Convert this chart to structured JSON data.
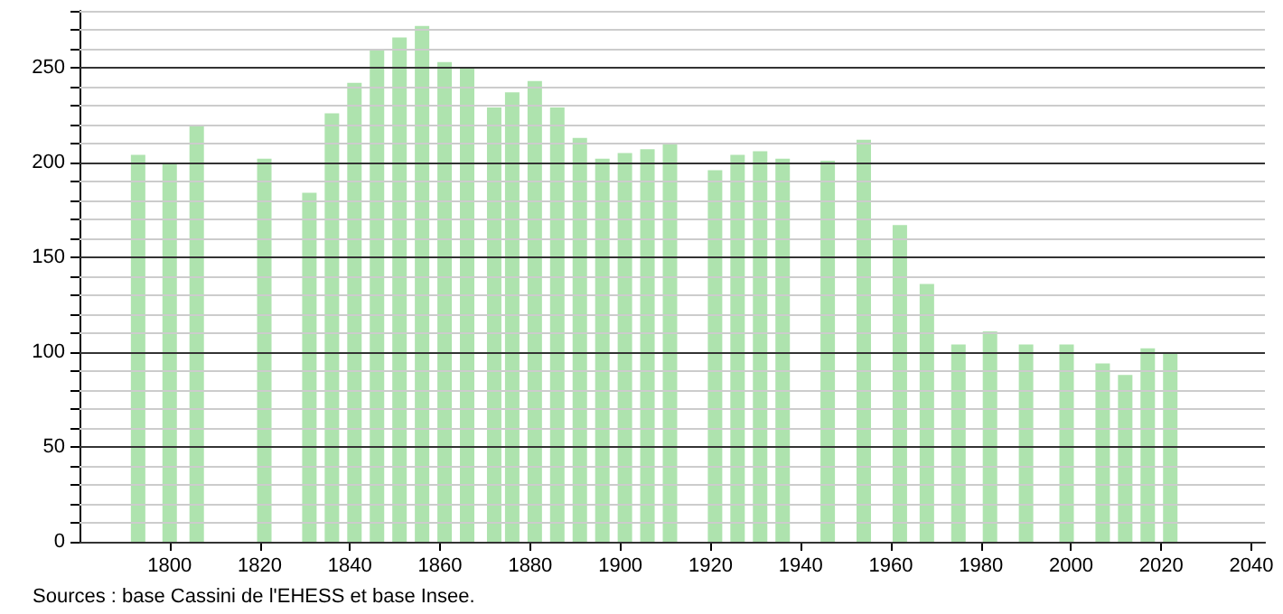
{
  "chart_data": {
    "type": "bar",
    "x": [
      1793,
      1800,
      1806,
      1821,
      1831,
      1836,
      1841,
      1846,
      1851,
      1856,
      1861,
      1866,
      1872,
      1876,
      1881,
      1886,
      1891,
      1896,
      1901,
      1906,
      1911,
      1921,
      1926,
      1931,
      1936,
      1946,
      1954,
      1962,
      1968,
      1975,
      1982,
      1990,
      1999,
      2007,
      2012,
      2017,
      2022
    ],
    "values": [
      204,
      199,
      220,
      202,
      184,
      226,
      242,
      260,
      266,
      272,
      253,
      250,
      229,
      237,
      243,
      229,
      213,
      202,
      205,
      207,
      210,
      196,
      204,
      206,
      202,
      201,
      212,
      167,
      136,
      104,
      111,
      104,
      104,
      94,
      88,
      102,
      99
    ],
    "color": "#aee3ae",
    "xlim": [
      1780,
      2043
    ],
    "xticks": [
      1800,
      1820,
      1840,
      1860,
      1880,
      1900,
      1920,
      1940,
      1960,
      1980,
      2000,
      2020,
      2040
    ],
    "ylim": [
      0,
      280
    ],
    "yticks": [
      0,
      {
        "value": 10,
        "label": null
      },
      {
        "value": 20,
        "label": null
      },
      {
        "value": 30,
        "label": null
      },
      {
        "value": 40,
        "label": null
      },
      50,
      {
        "value": 60,
        "label": null
      },
      {
        "value": 70,
        "label": null
      },
      {
        "value": 80,
        "label": null
      },
      {
        "value": 90,
        "label": null
      },
      100,
      {
        "value": 110,
        "label": null
      },
      {
        "value": 120,
        "label": null
      },
      {
        "value": 130,
        "label": null
      },
      {
        "value": 140,
        "label": null
      },
      150,
      {
        "value": 160,
        "label": null
      },
      {
        "value": 170,
        "label": null
      },
      {
        "value": 180,
        "label": null
      },
      {
        "value": 190,
        "label": null
      },
      200,
      {
        "value": 210,
        "label": null
      },
      {
        "value": 220,
        "label": null
      },
      {
        "value": 230,
        "label": null
      },
      {
        "value": 240,
        "label": null
      },
      250,
      {
        "value": 260,
        "label": null
      },
      {
        "value": 270,
        "label": null
      },
      {
        "value": 280,
        "label": null
      }
    ],
    "grid": "y",
    "annotations": [
      "Sources : base Cassini de l'EHESS et base Insee."
    ]
  }
}
